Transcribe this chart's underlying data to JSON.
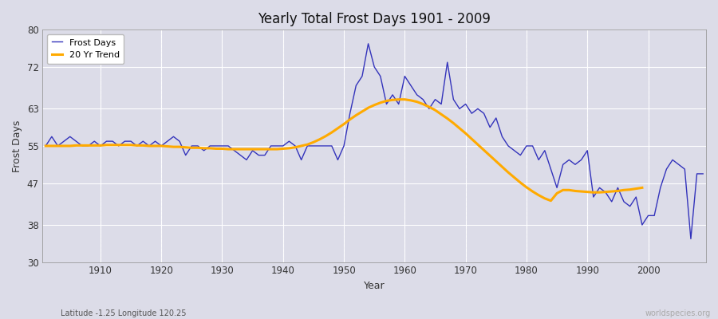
{
  "title": "Yearly Total Frost Days 1901 - 2009",
  "xlabel": "Year",
  "ylabel": "Frost Days",
  "subtitle": "Latitude -1.25 Longitude 120.25",
  "watermark": "worldspecies.org",
  "ylim": [
    30,
    80
  ],
  "yticks": [
    30,
    38,
    47,
    55,
    63,
    72,
    80
  ],
  "bg_color": "#dcdce8",
  "plot_bg_color": "#dcdce8",
  "line_color": "#3333bb",
  "trend_color": "#ffaa00",
  "years": [
    1901,
    1902,
    1903,
    1904,
    1905,
    1906,
    1907,
    1908,
    1909,
    1910,
    1911,
    1912,
    1913,
    1914,
    1915,
    1916,
    1917,
    1918,
    1919,
    1920,
    1921,
    1922,
    1923,
    1924,
    1925,
    1926,
    1927,
    1928,
    1929,
    1930,
    1931,
    1932,
    1933,
    1934,
    1935,
    1936,
    1937,
    1938,
    1939,
    1940,
    1941,
    1942,
    1943,
    1944,
    1945,
    1946,
    1947,
    1948,
    1949,
    1950,
    1951,
    1952,
    1953,
    1954,
    1955,
    1956,
    1957,
    1958,
    1959,
    1960,
    1961,
    1962,
    1963,
    1964,
    1965,
    1966,
    1967,
    1968,
    1969,
    1970,
    1971,
    1972,
    1973,
    1974,
    1975,
    1976,
    1977,
    1978,
    1979,
    1980,
    1981,
    1982,
    1983,
    1984,
    1985,
    1986,
    1987,
    1988,
    1989,
    1990,
    1991,
    1992,
    1993,
    1994,
    1995,
    1996,
    1997,
    1998,
    1999,
    2000,
    2001,
    2002,
    2003,
    2004,
    2005,
    2006,
    2007,
    2008,
    2009
  ],
  "frost_days": [
    55,
    57,
    55,
    56,
    57,
    56,
    55,
    55,
    56,
    55,
    56,
    56,
    55,
    56,
    56,
    55,
    56,
    55,
    56,
    55,
    56,
    57,
    56,
    53,
    55,
    55,
    54,
    55,
    55,
    55,
    55,
    54,
    53,
    52,
    54,
    53,
    53,
    55,
    55,
    55,
    56,
    55,
    52,
    55,
    55,
    55,
    55,
    55,
    52,
    55,
    62,
    68,
    70,
    77,
    72,
    70,
    64,
    66,
    64,
    70,
    68,
    66,
    65,
    63,
    65,
    64,
    73,
    65,
    63,
    64,
    62,
    63,
    62,
    59,
    61,
    57,
    55,
    54,
    53,
    55,
    55,
    52,
    54,
    50,
    46,
    51,
    52,
    51,
    52,
    54,
    44,
    46,
    45,
    43,
    46,
    43,
    42,
    44,
    38,
    40,
    40,
    46,
    50,
    52,
    51,
    50,
    35,
    49,
    49
  ],
  "trend": [
    55.0,
    55.0,
    55.0,
    55.0,
    55.0,
    55.1,
    55.1,
    55.1,
    55.1,
    55.1,
    55.2,
    55.2,
    55.2,
    55.2,
    55.2,
    55.1,
    55.1,
    55.0,
    55.0,
    55.0,
    54.9,
    54.8,
    54.8,
    54.7,
    54.6,
    54.6,
    54.5,
    54.5,
    54.4,
    54.4,
    54.3,
    54.3,
    54.3,
    54.3,
    54.3,
    54.3,
    54.3,
    54.3,
    54.3,
    54.4,
    54.5,
    54.7,
    55.0,
    55.3,
    55.8,
    56.4,
    57.1,
    57.9,
    58.8,
    59.7,
    60.7,
    61.6,
    62.4,
    63.2,
    63.8,
    64.3,
    64.7,
    64.9,
    65.0,
    65.0,
    64.8,
    64.5,
    64.0,
    63.4,
    62.7,
    61.8,
    60.9,
    59.9,
    58.8,
    57.7,
    56.5,
    55.3,
    54.1,
    52.9,
    51.7,
    50.5,
    49.3,
    48.2,
    47.1,
    46.1,
    45.2,
    44.4,
    43.7,
    43.2,
    44.8,
    45.5,
    45.5,
    45.3,
    45.2,
    45.1,
    45.0,
    45.0,
    45.1,
    45.2,
    45.3,
    45.5,
    45.6,
    45.8,
    46.0
  ],
  "xticks": [
    1910,
    1920,
    1930,
    1940,
    1950,
    1960,
    1970,
    1980,
    1990,
    2000
  ],
  "grid_color": "#ffffff",
  "grid_minor_color": "#e0e0ea"
}
